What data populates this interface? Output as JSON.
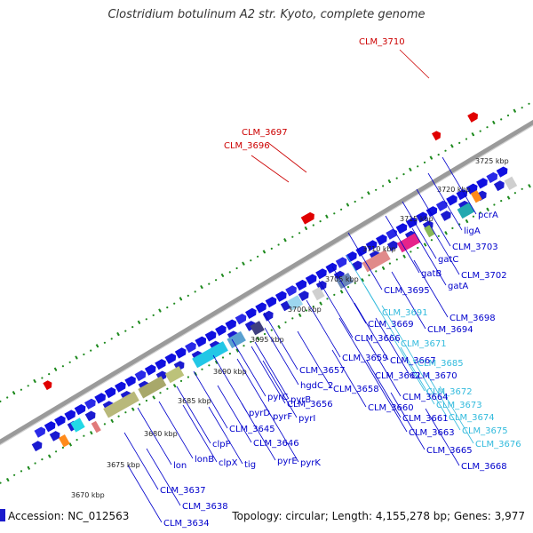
{
  "title": "Clostridium botulinum A2 str. Kyoto, complete genome",
  "footer": {
    "accession": "Accession: NC_012563",
    "stats": "Topology: circular; Length: 4,155,278 bp; Genes: 3,977"
  },
  "colors": {
    "backbone": "#9a9a9a",
    "forward_gene": "#1010e0",
    "label_blue": "#0000cc",
    "label_cyan": "#33bbdd",
    "label_red": "#cc0000",
    "tick_dots": "#1e8a1e"
  },
  "scale_labels": [
    "3670 kbp",
    "3675 kbp",
    "3680 kbp",
    "3685 kbp",
    "3690 kbp",
    "3695 kbp",
    "3700 kbp",
    "3705 kbp",
    "3710 kbp",
    "3715 kbp",
    "3720 kbp",
    "3725 kbp"
  ],
  "red_labels": [
    "CLM_3710",
    "CLM_3697",
    "CLM_3696"
  ],
  "gene_labels": [
    {
      "text": "pcrA",
      "color": "blue"
    },
    {
      "text": "ligA",
      "color": "blue"
    },
    {
      "text": "CLM_3703",
      "color": "blue"
    },
    {
      "text": "gatC",
      "color": "blue"
    },
    {
      "text": "CLM_3702",
      "color": "blue"
    },
    {
      "text": "gatB",
      "color": "blue"
    },
    {
      "text": "gatA",
      "color": "blue"
    },
    {
      "text": "CLM_3695",
      "color": "blue"
    },
    {
      "text": "CLM_3691",
      "color": "cyan"
    },
    {
      "text": "CLM_3698",
      "color": "blue"
    },
    {
      "text": "CLM_3669",
      "color": "blue"
    },
    {
      "text": "CLM_3694",
      "color": "blue"
    },
    {
      "text": "CLM_3666",
      "color": "blue"
    },
    {
      "text": "CLM_3671",
      "color": "cyan"
    },
    {
      "text": "CLM_3659",
      "color": "blue"
    },
    {
      "text": "CLM_3667",
      "color": "blue"
    },
    {
      "text": "CLM_3685",
      "color": "cyan"
    },
    {
      "text": "CLM_3657",
      "color": "blue"
    },
    {
      "text": "CLM_3662",
      "color": "blue"
    },
    {
      "text": "CLM_3670",
      "color": "blue"
    },
    {
      "text": "hgdC_2",
      "color": "blue"
    },
    {
      "text": "CLM_3658",
      "color": "blue"
    },
    {
      "text": "CLM_3672",
      "color": "cyan"
    },
    {
      "text": "pyrC",
      "color": "blue"
    },
    {
      "text": "pyrB",
      "color": "blue"
    },
    {
      "text": "CLM_3664",
      "color": "blue"
    },
    {
      "text": "CLM_3656",
      "color": "blue"
    },
    {
      "text": "CLM_3660",
      "color": "blue"
    },
    {
      "text": "CLM_3673",
      "color": "cyan"
    },
    {
      "text": "pyrD",
      "color": "blue"
    },
    {
      "text": "pyrF",
      "color": "blue"
    },
    {
      "text": "pyrI",
      "color": "blue"
    },
    {
      "text": "CLM_3661",
      "color": "blue"
    },
    {
      "text": "CLM_3674",
      "color": "cyan"
    },
    {
      "text": "CLM_3645",
      "color": "blue"
    },
    {
      "text": "CLM_3663",
      "color": "blue"
    },
    {
      "text": "CLM_3675",
      "color": "cyan"
    },
    {
      "text": "clpP",
      "color": "blue"
    },
    {
      "text": "CLM_3646",
      "color": "blue"
    },
    {
      "text": "CLM_3676",
      "color": "cyan"
    },
    {
      "text": "lonB",
      "color": "blue"
    },
    {
      "text": "clpX",
      "color": "blue"
    },
    {
      "text": "tig",
      "color": "blue"
    },
    {
      "text": "pyrE",
      "color": "blue"
    },
    {
      "text": "pyrK",
      "color": "blue"
    },
    {
      "text": "CLM_3665",
      "color": "blue"
    },
    {
      "text": "lon",
      "color": "blue"
    },
    {
      "text": "CLM_3668",
      "color": "blue"
    },
    {
      "text": "CLM_3637",
      "color": "blue"
    },
    {
      "text": "CLM_3638",
      "color": "blue"
    },
    {
      "text": "CLM_3634",
      "color": "blue"
    }
  ]
}
